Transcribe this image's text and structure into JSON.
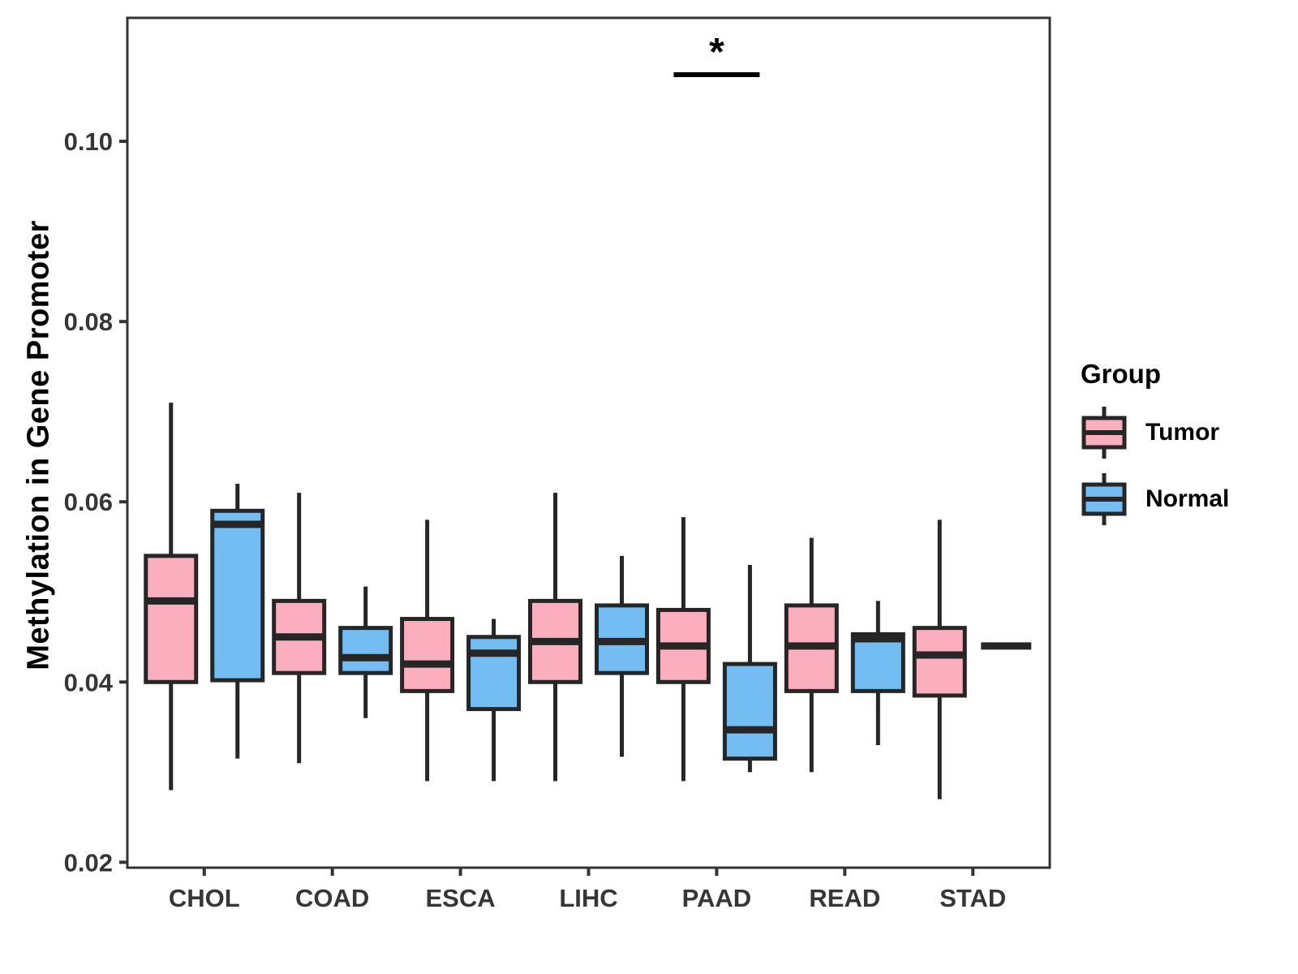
{
  "chart_data": {
    "type": "boxplot",
    "title": "",
    "xlabel": "",
    "ylabel": "Methylation in Gene Promoter",
    "categories": [
      "CHOL",
      "COAD",
      "ESCA",
      "LIHC",
      "PAAD",
      "READ",
      "STAD"
    ],
    "y_ticks": {
      "values": [
        0.02,
        0.04,
        0.06,
        0.08,
        0.1
      ],
      "labels": [
        "0.02",
        "0.04",
        "0.06",
        "0.08",
        "0.10"
      ]
    },
    "ylim": [
      0.0194,
      0.1137
    ],
    "grid": "off",
    "legend": {
      "title": "Group",
      "position": "right"
    },
    "series": [
      {
        "name": "Tumor",
        "fill": "#FAAEBE",
        "stats": [
          [
            0.028,
            0.04,
            0.049,
            0.054,
            0.071
          ],
          [
            0.031,
            0.041,
            0.045,
            0.049,
            0.061
          ],
          [
            0.029,
            0.039,
            0.042,
            0.047,
            0.058
          ],
          [
            0.029,
            0.04,
            0.0445,
            0.049,
            0.061
          ],
          [
            0.029,
            0.04,
            0.044,
            0.048,
            0.0583
          ],
          [
            0.03,
            0.039,
            0.044,
            0.0485,
            0.056
          ],
          [
            0.027,
            0.0385,
            0.043,
            0.046,
            0.058
          ]
        ]
      },
      {
        "name": "Normal",
        "fill": "#73BDF3",
        "stats": [
          [
            0.0315,
            0.0402,
            0.0575,
            0.059,
            0.062
          ],
          [
            0.036,
            0.041,
            0.0427,
            0.046,
            0.0506
          ],
          [
            0.029,
            0.037,
            0.0432,
            0.045,
            0.047
          ],
          [
            0.0317,
            0.041,
            0.0445,
            0.0485,
            0.054
          ],
          [
            0.03,
            0.0315,
            0.0347,
            0.042,
            0.053
          ],
          [
            0.033,
            0.039,
            0.0448,
            0.0453,
            0.049
          ],
          [
            0.044,
            0.044,
            0.044,
            0.044,
            0.044
          ]
        ]
      }
    ],
    "stats_format": "[whisker_low, q1, median, q3, whisker_high]",
    "significance": {
      "label": "*",
      "category": "PAAD",
      "between": [
        "Tumor",
        "Normal"
      ],
      "bar_y": 0.1074
    },
    "colors": {
      "box_border": "#262626",
      "axis": "#333333",
      "tick_text": "#363636",
      "annotation": "#000000"
    }
  }
}
